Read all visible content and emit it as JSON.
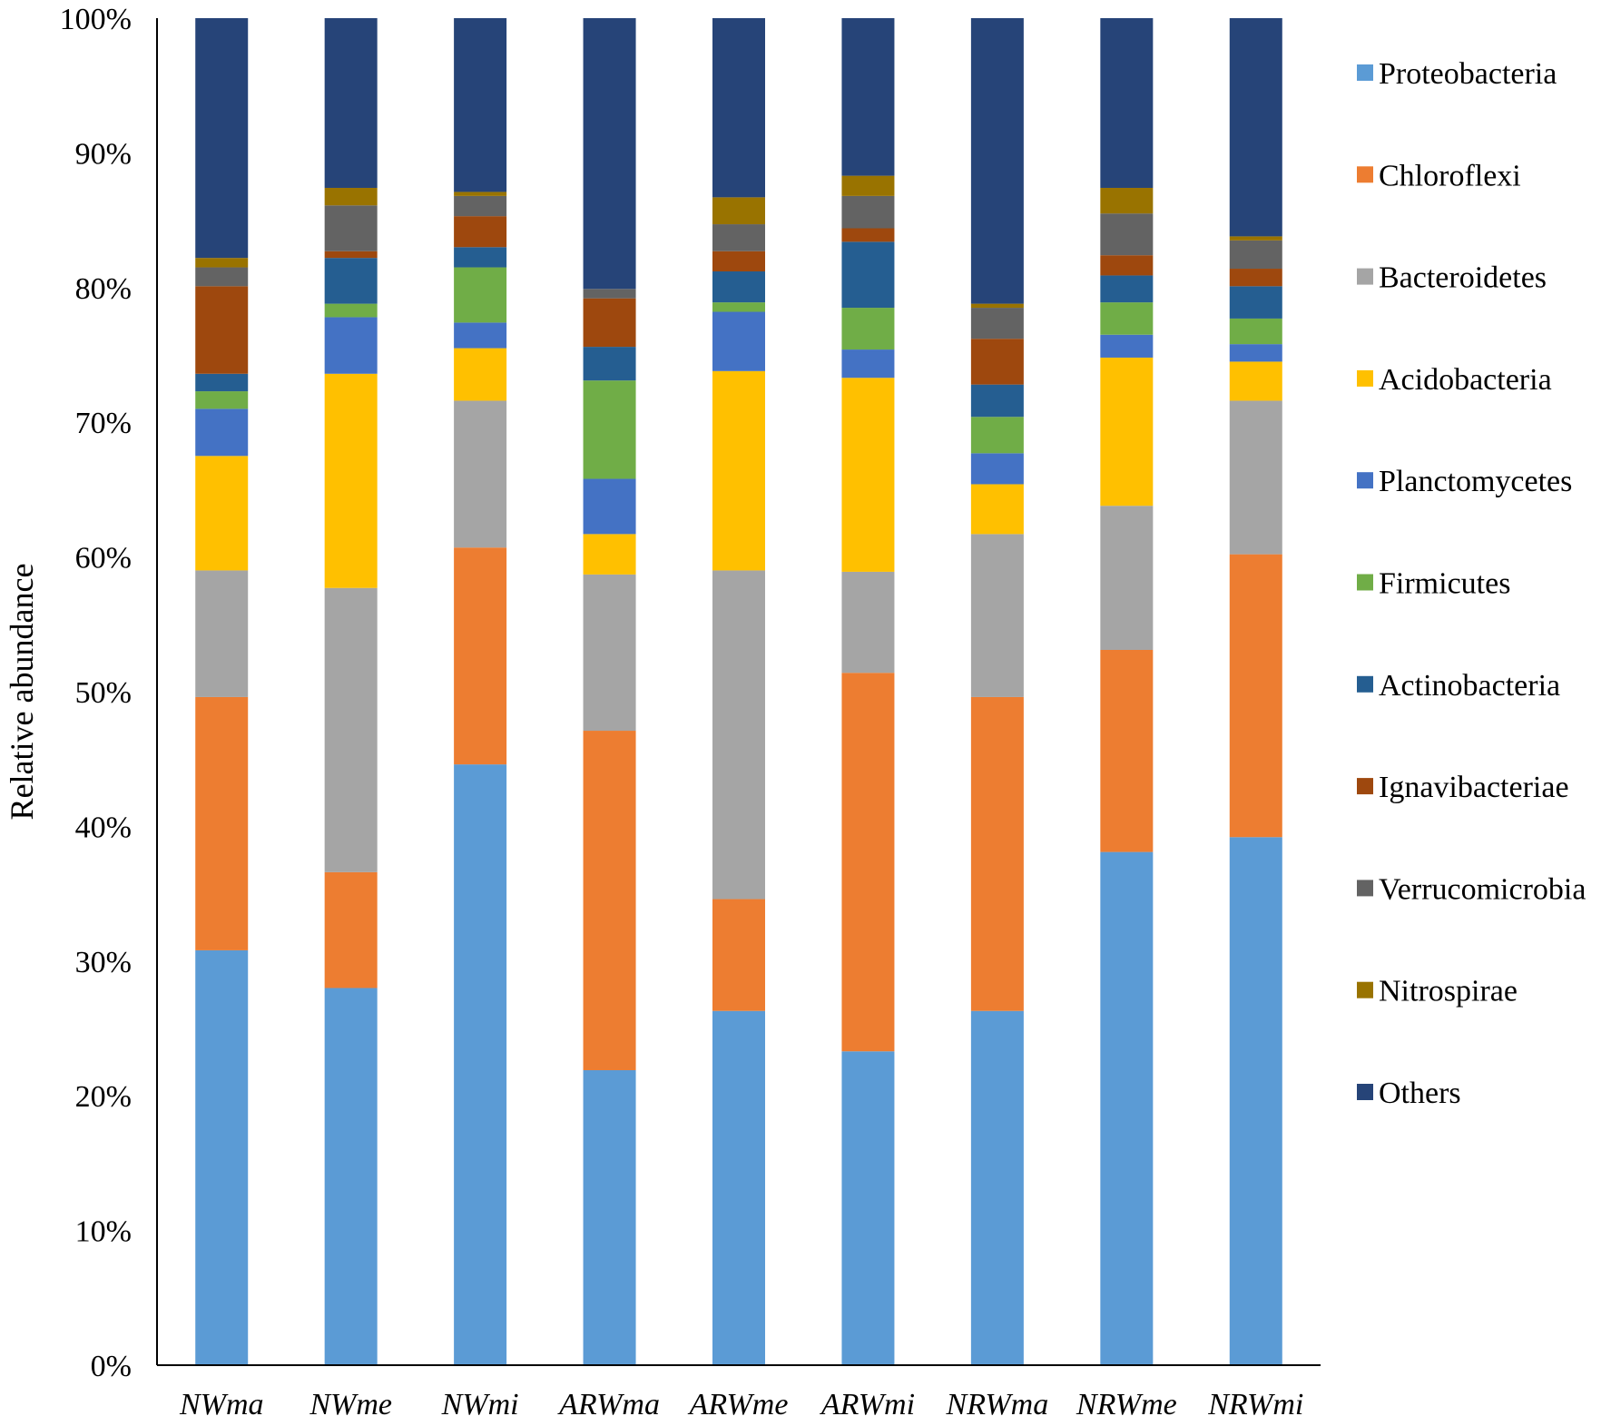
{
  "chart_data": {
    "type": "bar",
    "stacked": true,
    "normalized": true,
    "title": "",
    "xlabel": "",
    "ylabel": "Relative abundance",
    "ylim": [
      0,
      100
    ],
    "yticks": [
      "0%",
      "10%",
      "20%",
      "30%",
      "40%",
      "50%",
      "60%",
      "70%",
      "80%",
      "90%",
      "100%"
    ],
    "categories": [
      "NWma",
      "NWme",
      "NWmi",
      "ARWma",
      "ARWme",
      "ARWmi",
      "NRWma",
      "NRWme",
      "NRWmi"
    ],
    "legend_position": "right",
    "series": [
      {
        "name": "Proteobacteria",
        "color": "#5B9BD5",
        "values": [
          30.8,
          28.0,
          44.6,
          21.9,
          26.3,
          23.3,
          26.3,
          38.1,
          39.2
        ]
      },
      {
        "name": "Chloroflexi",
        "color": "#ED7D31",
        "values": [
          18.8,
          8.6,
          16.1,
          25.2,
          8.3,
          28.1,
          23.3,
          15.0,
          21.0
        ]
      },
      {
        "name": "Bacteroidetes",
        "color": "#A5A5A5",
        "values": [
          9.4,
          21.1,
          10.9,
          11.6,
          24.4,
          7.5,
          12.1,
          10.7,
          11.4
        ]
      },
      {
        "name": "Acidobacteria",
        "color": "#FFC000",
        "values": [
          8.5,
          15.9,
          3.9,
          3.0,
          14.8,
          14.4,
          3.7,
          11.0,
          2.9
        ]
      },
      {
        "name": "Planctomycetes",
        "color": "#4472C4",
        "values": [
          3.5,
          4.2,
          1.9,
          4.1,
          4.4,
          2.1,
          2.3,
          1.7,
          1.3
        ]
      },
      {
        "name": "Firmicutes",
        "color": "#70AD47",
        "values": [
          1.3,
          1.0,
          4.1,
          7.3,
          0.7,
          3.1,
          2.7,
          2.4,
          1.9
        ]
      },
      {
        "name": "Actinobacteria",
        "color": "#255E91",
        "values": [
          1.3,
          3.4,
          1.5,
          2.5,
          2.3,
          4.9,
          2.4,
          2.0,
          2.4
        ]
      },
      {
        "name": "Ignavibacteriae",
        "color": "#9E480E",
        "values": [
          6.5,
          0.5,
          2.3,
          3.6,
          1.5,
          1.0,
          3.4,
          1.5,
          1.3
        ]
      },
      {
        "name": "Verrucomicrobia",
        "color": "#636363",
        "values": [
          1.4,
          3.4,
          1.5,
          0.7,
          2.0,
          2.4,
          2.3,
          3.1,
          2.1
        ]
      },
      {
        "name": "Nitrospirae",
        "color": "#997300",
        "values": [
          0.7,
          1.3,
          0.3,
          0.0,
          2.0,
          1.5,
          0.3,
          1.9,
          0.3
        ]
      },
      {
        "name": "Others",
        "color": "#264478",
        "values": [
          17.8,
          12.6,
          12.9,
          20.1,
          13.3,
          11.7,
          21.2,
          12.6,
          16.2
        ]
      }
    ]
  }
}
